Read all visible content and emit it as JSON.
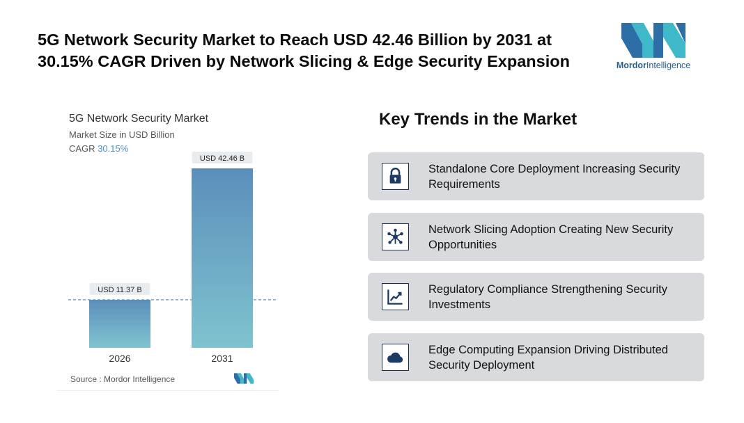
{
  "headline": "5G Network Security Market to Reach USD 42.46 Billion by 2031 at 30.15% CAGR Driven by Network Slicing & Edge Security Expansion",
  "logo": {
    "brand_bold": "Mordor",
    "brand_light": "Intelligence"
  },
  "chart": {
    "title": "5G Network Security Market",
    "subtitle": "Market Size in USD Billion",
    "cagr_label": "CAGR",
    "cagr_value": "30.15%",
    "source": "Source :  Mordor Intelligence",
    "colors": {
      "bar_top": "#5b8fbb",
      "bar_bottom": "#7fc3cf",
      "label_bg": "#e9ecef"
    }
  },
  "chart_data": {
    "type": "bar",
    "categories": [
      "2026",
      "2031"
    ],
    "values": [
      11.37,
      42.46
    ],
    "data_labels": [
      "USD 11.37 B",
      "USD 42.46 B"
    ],
    "ylim": [
      0,
      42.46
    ],
    "grid": false,
    "reference_line": "dashed line at 2026 value"
  },
  "trends": {
    "title": "Key Trends in the Market",
    "items": [
      {
        "icon": "lock-icon",
        "text": "Standalone Core Deployment Increasing Security Requirements"
      },
      {
        "icon": "network-hub-icon",
        "text": "Network Slicing Adoption Creating New Security Opportunities"
      },
      {
        "icon": "line-chart-icon",
        "text": "Regulatory Compliance Strengthening Security Investments"
      },
      {
        "icon": "cloud-icon",
        "text": "Edge Computing Expansion Driving Distributed Security Deployment"
      }
    ]
  }
}
